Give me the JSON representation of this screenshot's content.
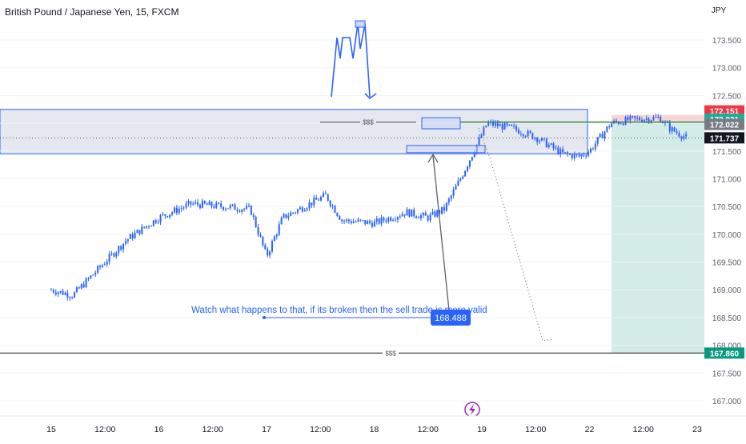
{
  "header": {
    "title": "British Pound / Japanese Yen, 15, FXCM"
  },
  "axis": {
    "currency": "JPY"
  },
  "chart_data": {
    "type": "candlestick",
    "title": "British Pound / Japanese Yen, 15, FXCM",
    "y_axis_unit": "JPY",
    "ylim": [
      166.75,
      174.05
    ],
    "y_ticks": [
      173.5,
      173.0,
      172.5,
      172.0,
      171.5,
      171.0,
      170.5,
      170.0,
      169.5,
      169.0,
      168.5,
      168.0,
      167.5,
      167.0
    ],
    "y_tick_labels": [
      "173.500",
      "173.000",
      "172.500",
      "172.000",
      "171.500",
      "171.000",
      "170.500",
      "170.000",
      "169.500",
      "169.000",
      "168.500",
      "168.000",
      "167.500",
      "167.000"
    ],
    "x_tick_labels": [
      "15",
      "12:00",
      "16",
      "12:00",
      "17",
      "12:00",
      "18",
      "12:00",
      "19",
      "12:00",
      "22",
      "12:00",
      "23"
    ],
    "price_path": [
      {
        "t": 0.0,
        "p": 169.0
      },
      {
        "t": 0.2,
        "p": 168.9
      },
      {
        "t": 0.4,
        "p": 169.3
      },
      {
        "t": 0.7,
        "p": 169.9
      },
      {
        "t": 1.0,
        "p": 170.3
      },
      {
        "t": 1.3,
        "p": 170.55
      },
      {
        "t": 1.6,
        "p": 170.5
      },
      {
        "t": 1.85,
        "p": 170.45
      },
      {
        "t": 2.0,
        "p": 169.6
      },
      {
        "t": 2.15,
        "p": 170.3
      },
      {
        "t": 2.45,
        "p": 170.6
      },
      {
        "t": 2.55,
        "p": 170.7
      },
      {
        "t": 2.7,
        "p": 170.25
      },
      {
        "t": 3.0,
        "p": 170.2
      },
      {
        "t": 3.3,
        "p": 170.4
      },
      {
        "t": 3.5,
        "p": 170.3
      },
      {
        "t": 3.65,
        "p": 170.45
      },
      {
        "t": 3.8,
        "p": 171.0
      },
      {
        "t": 3.95,
        "p": 171.6
      },
      {
        "t": 4.05,
        "p": 172.0
      },
      {
        "t": 4.3,
        "p": 171.9
      },
      {
        "t": 4.5,
        "p": 171.75
      },
      {
        "t": 4.75,
        "p": 171.45
      },
      {
        "t": 4.9,
        "p": 171.4
      },
      {
        "t": 5.0,
        "p": 171.5
      },
      {
        "t": 5.2,
        "p": 172.0
      },
      {
        "t": 5.4,
        "p": 172.07
      },
      {
        "t": 5.65,
        "p": 172.1
      },
      {
        "t": 5.75,
        "p": 171.9
      },
      {
        "t": 5.9,
        "p": 171.74
      }
    ],
    "levels": {
      "last_price": {
        "value": 171.737,
        "label": "171.737",
        "color": "#131722"
      },
      "stop_loss": {
        "value": 172.151,
        "label": "172.151",
        "color": "#f23645"
      },
      "entry": {
        "value": 172.031,
        "label": "172.031",
        "color": "#22ab94"
      },
      "resistance": {
        "value": 172.022,
        "label": "172.022",
        "color": "#787b86"
      },
      "target": {
        "value": 167.86,
        "label": "167.860",
        "color": "#089981"
      }
    },
    "zone": {
      "low": 171.45,
      "high": 172.25
    },
    "liquidity_label": "$$$",
    "price_bubble": {
      "value": 168.488,
      "label": "168.488"
    },
    "annotation": "Watch what happens to that, if its broken then the sell trade is more valid",
    "event_icon": "lightning-icon"
  },
  "colors": {
    "up": "#2962ff",
    "down": "#2962ff",
    "accent": "#2962ff",
    "sl_fill": "#f8d6d8",
    "tp_fill": "#d3ece8"
  }
}
